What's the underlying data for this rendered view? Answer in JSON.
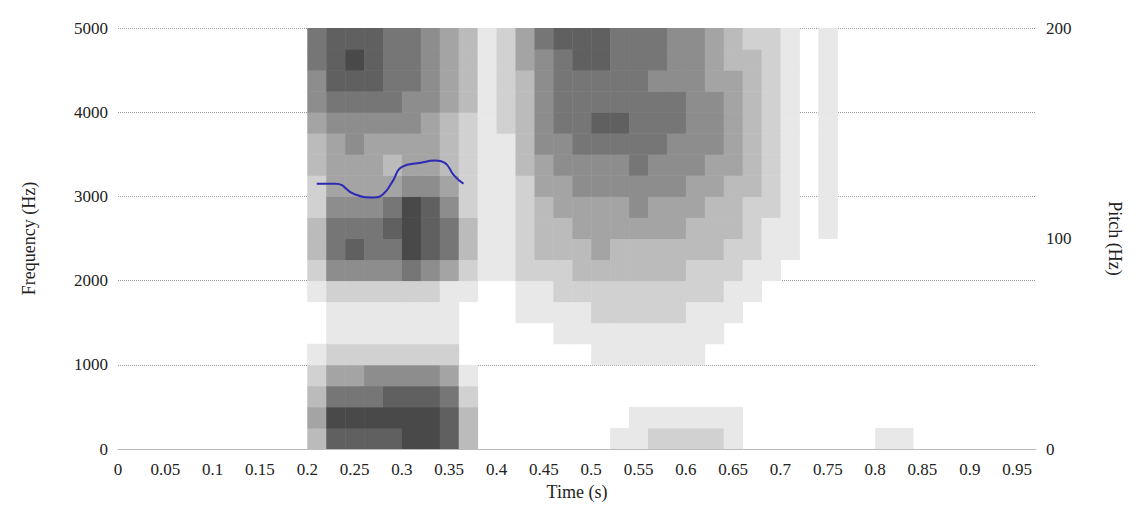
{
  "chart_data": {
    "type": "spectrogram",
    "x_label": "Time (s)",
    "y_label": "Frequency (Hz)",
    "y2_label": "Pitch (Hz)",
    "xlim": [
      0,
      0.97
    ],
    "xticks": [
      0,
      0.05,
      0.1,
      0.15,
      0.2,
      0.25,
      0.3,
      0.35,
      0.4,
      0.45,
      0.5,
      0.55,
      0.6,
      0.65,
      0.7,
      0.75,
      0.8,
      0.85,
      0.9,
      0.95
    ],
    "ylim": [
      0,
      5000
    ],
    "yticks": [
      0,
      1000,
      2000,
      3000,
      4000,
      5000
    ],
    "y2lim": [
      0,
      200
    ],
    "y2ticks": [
      0,
      100,
      200
    ],
    "grid": true,
    "spectrogram": {
      "times": [
        0.2,
        0.22,
        0.24,
        0.26,
        0.28,
        0.3,
        0.32,
        0.34,
        0.36,
        0.38,
        0.4,
        0.42,
        0.44,
        0.46,
        0.48,
        0.5,
        0.52,
        0.54,
        0.56,
        0.58,
        0.6,
        0.62,
        0.64,
        0.66,
        0.68,
        0.7,
        0.72,
        0.74,
        0.76,
        0.78,
        0.8,
        0.82
      ],
      "frequencies": [
        0,
        250,
        500,
        750,
        1000,
        1250,
        1500,
        1750,
        2000,
        2250,
        2500,
        2750,
        3000,
        3250,
        3500,
        3750,
        4000,
        4250,
        4500,
        4750
      ],
      "color_range": [
        0,
        9
      ],
      "intensity": [
        [
          3,
          4,
          3,
          2,
          1,
          0,
          0,
          1,
          2,
          3,
          3,
          2,
          2,
          3,
          3,
          4,
          5,
          5,
          6,
          6
        ],
        [
          7,
          8,
          6,
          4,
          2,
          1,
          1,
          2,
          5,
          6,
          6,
          5,
          4,
          4,
          4,
          5,
          6,
          7,
          7,
          7
        ],
        [
          7,
          8,
          6,
          4,
          2,
          1,
          1,
          2,
          5,
          7,
          6,
          5,
          4,
          4,
          5,
          5,
          6,
          7,
          8,
          7
        ],
        [
          7,
          8,
          6,
          5,
          2,
          1,
          1,
          2,
          5,
          6,
          6,
          5,
          4,
          4,
          4,
          5,
          6,
          7,
          7,
          7
        ],
        [
          7,
          8,
          7,
          5,
          2,
          1,
          1,
          2,
          5,
          6,
          7,
          6,
          4,
          3,
          4,
          5,
          6,
          6,
          6,
          6
        ],
        [
          8,
          8,
          7,
          5,
          2,
          1,
          1,
          2,
          6,
          8,
          8,
          8,
          5,
          4,
          4,
          5,
          5,
          6,
          6,
          6
        ],
        [
          8,
          8,
          7,
          5,
          2,
          1,
          1,
          2,
          5,
          7,
          7,
          7,
          5,
          4,
          4,
          4,
          5,
          5,
          5,
          5
        ],
        [
          7,
          7,
          6,
          4,
          2,
          1,
          1,
          1,
          4,
          6,
          6,
          5,
          4,
          3,
          3,
          3,
          4,
          4,
          4,
          4
        ],
        [
          3,
          3,
          2,
          1,
          0,
          0,
          0,
          1,
          2,
          3,
          3,
          2,
          2,
          2,
          2,
          2,
          3,
          3,
          3,
          3
        ],
        [
          0,
          0,
          0,
          0,
          0,
          0,
          0,
          0,
          1,
          1,
          1,
          1,
          1,
          1,
          1,
          1,
          1,
          1,
          1,
          1
        ],
        [
          0,
          0,
          0,
          0,
          0,
          0,
          0,
          0,
          1,
          1,
          1,
          1,
          1,
          1,
          1,
          2,
          2,
          2,
          2,
          2
        ],
        [
          0,
          0,
          0,
          0,
          0,
          0,
          1,
          1,
          2,
          2,
          2,
          2,
          2,
          3,
          3,
          3,
          3,
          3,
          4,
          4
        ],
        [
          0,
          0,
          0,
          0,
          0,
          0,
          1,
          1,
          2,
          3,
          3,
          3,
          4,
          4,
          5,
          5,
          5,
          5,
          5,
          6
        ],
        [
          0,
          0,
          0,
          0,
          0,
          1,
          1,
          2,
          2,
          3,
          3,
          4,
          4,
          5,
          5,
          6,
          6,
          6,
          6,
          7
        ],
        [
          0,
          0,
          0,
          0,
          0,
          1,
          1,
          2,
          3,
          3,
          4,
          4,
          5,
          5,
          6,
          6,
          6,
          6,
          7,
          7
        ],
        [
          0,
          0,
          0,
          0,
          1,
          1,
          2,
          2,
          3,
          4,
          4,
          4,
          5,
          5,
          6,
          7,
          6,
          6,
          7,
          7
        ],
        [
          1,
          0,
          0,
          0,
          1,
          1,
          2,
          2,
          3,
          3,
          4,
          4,
          5,
          5,
          6,
          7,
          6,
          6,
          6,
          6
        ],
        [
          1,
          1,
          0,
          0,
          1,
          1,
          2,
          2,
          3,
          3,
          4,
          5,
          5,
          6,
          6,
          6,
          6,
          6,
          6,
          6
        ],
        [
          2,
          1,
          0,
          0,
          1,
          1,
          2,
          2,
          3,
          3,
          4,
          4,
          5,
          5,
          6,
          6,
          6,
          5,
          6,
          6
        ],
        [
          2,
          1,
          0,
          0,
          1,
          1,
          2,
          2,
          3,
          3,
          4,
          4,
          5,
          5,
          5,
          6,
          6,
          5,
          5,
          5
        ],
        [
          2,
          1,
          0,
          0,
          1,
          1,
          1,
          2,
          2,
          3,
          3,
          4,
          4,
          5,
          5,
          5,
          5,
          5,
          5,
          5
        ],
        [
          2,
          1,
          0,
          0,
          0,
          1,
          1,
          2,
          2,
          3,
          3,
          3,
          4,
          4,
          5,
          5,
          5,
          4,
          4,
          4
        ],
        [
          1,
          1,
          0,
          0,
          0,
          0,
          1,
          1,
          2,
          2,
          3,
          3,
          3,
          4,
          4,
          4,
          4,
          4,
          3,
          3
        ],
        [
          0,
          0,
          0,
          0,
          0,
          0,
          0,
          1,
          1,
          2,
          2,
          2,
          3,
          3,
          3,
          3,
          3,
          3,
          3,
          2
        ],
        [
          0,
          0,
          0,
          0,
          0,
          0,
          0,
          0,
          1,
          1,
          1,
          2,
          2,
          2,
          2,
          2,
          2,
          2,
          2,
          2
        ],
        [
          0,
          0,
          0,
          0,
          0,
          0,
          0,
          0,
          0,
          1,
          1,
          1,
          1,
          1,
          1,
          1,
          1,
          1,
          1,
          1
        ],
        [
          0,
          0,
          0,
          0,
          0,
          0,
          0,
          0,
          0,
          0,
          0,
          0,
          0,
          0,
          0,
          0,
          0,
          0,
          0,
          0
        ],
        [
          0,
          0,
          0,
          0,
          0,
          0,
          0,
          0,
          0,
          0,
          1,
          1,
          1,
          1,
          1,
          1,
          1,
          1,
          1,
          1
        ],
        [
          0,
          0,
          0,
          0,
          0,
          0,
          0,
          0,
          0,
          0,
          0,
          0,
          0,
          0,
          0,
          0,
          0,
          0,
          0,
          0
        ],
        [
          0,
          0,
          0,
          0,
          0,
          0,
          0,
          0,
          0,
          0,
          0,
          0,
          0,
          0,
          0,
          0,
          0,
          0,
          0,
          0
        ],
        [
          1,
          0,
          0,
          0,
          0,
          0,
          0,
          0,
          0,
          0,
          0,
          0,
          0,
          0,
          0,
          0,
          0,
          0,
          0,
          0
        ],
        [
          1,
          0,
          0,
          0,
          0,
          0,
          0,
          0,
          0,
          0,
          0,
          0,
          0,
          0,
          0,
          0,
          0,
          0,
          0,
          0
        ]
      ]
    },
    "series": [
      {
        "name": "Pitch",
        "type": "line",
        "axis": "y2",
        "color": "#2a2ab4",
        "x": [
          0.21,
          0.23,
          0.25,
          0.27,
          0.28,
          0.29,
          0.3,
          0.32,
          0.335,
          0.345,
          0.355,
          0.365
        ],
        "values": [
          126,
          126,
          121,
          119.5,
          121,
          127,
          134,
          136,
          137,
          136,
          130,
          126
        ]
      }
    ]
  }
}
